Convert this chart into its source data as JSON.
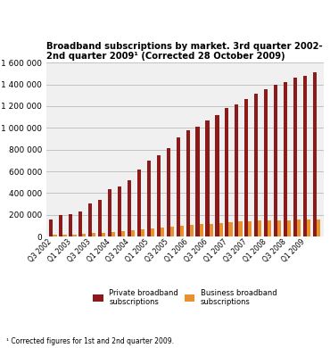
{
  "title": "Broadband subscriptions by market. 3rd quarter 2002-\n2nd quarter 2009¹ (Corrected 28 October 2009)",
  "footnote": "¹ Corrected figures for 1st and 2nd quarter 2009.",
  "shown_labels": [
    "Q3 2002",
    "Q1 2003",
    "Q3 2003",
    "Q1 2004",
    "Q3 2004",
    "Q1 2005",
    "Q3 2005",
    "Q1 2006",
    "Q3 2006",
    "Q1 2007",
    "Q3 2007",
    "Q1 2008",
    "Q3 2008",
    "Q1 2009"
  ],
  "tick_positions": [
    0,
    2,
    4,
    6,
    8,
    10,
    12,
    14,
    16,
    18,
    20,
    22,
    24,
    26
  ],
  "private": [
    160000,
    200000,
    210000,
    235000,
    305000,
    340000,
    435000,
    460000,
    520000,
    615000,
    695000,
    750000,
    810000,
    910000,
    975000,
    1010000,
    1065000,
    1120000,
    1185000,
    1220000,
    1265000,
    1315000,
    1355000,
    1400000,
    1420000,
    1460000,
    1480000,
    1510000
  ],
  "business": [
    20000,
    20000,
    22000,
    28000,
    33000,
    37000,
    42000,
    50000,
    58000,
    65000,
    75000,
    80000,
    92000,
    100000,
    105000,
    115000,
    120000,
    125000,
    130000,
    138000,
    143000,
    147000,
    148000,
    150000,
    152000,
    155000,
    158000,
    160000
  ],
  "private_color": "#8B1A1A",
  "business_color": "#E8922E",
  "legend_private": "Private broadband\nsubscriptions",
  "legend_business": "Business broadband\nsubscriptions",
  "ylim": [
    0,
    1600000
  ],
  "yticks": [
    0,
    200000,
    400000,
    600000,
    800000,
    1000000,
    1200000,
    1400000,
    1600000
  ],
  "background_color": "#F0F0F0",
  "grid_color": "#BBBBBB",
  "bar_width": 0.75,
  "group_width": 0.38,
  "n_bars": 28
}
